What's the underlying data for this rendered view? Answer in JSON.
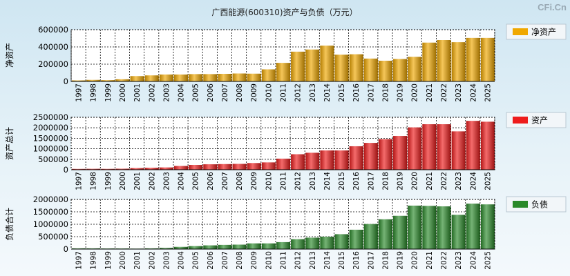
{
  "watermark": "CFi.Cn",
  "chart_data": [
    {
      "type": "bar",
      "title": "广西能源(600310)资产与负债（万元）",
      "ylabel": "净资产",
      "series": [
        {
          "name": "净资产",
          "color": "#f0a800",
          "values": [
            12000,
            18000,
            15000,
            25000,
            62000,
            70000,
            80000,
            80000,
            85000,
            85000,
            88000,
            92000,
            90000,
            140000,
            215000,
            345000,
            370000,
            415000,
            310000,
            315000,
            265000,
            240000,
            260000,
            285000,
            450000,
            480000,
            455000,
            505000,
            505000
          ]
        }
      ],
      "categories": [
        "1997",
        "1998",
        "1999",
        "2000",
        "2001",
        "2002",
        "2003",
        "2004",
        "2005",
        "2006",
        "2007",
        "2008",
        "2009",
        "2010",
        "2011",
        "2012",
        "2013",
        "2014",
        "2015",
        "2016",
        "2017",
        "2018",
        "2019",
        "2020",
        "2021",
        "2022",
        "2023",
        "2024",
        "2025"
      ],
      "ylim": [
        0,
        600000
      ],
      "yticks": [
        "0",
        "200000",
        "400000",
        "600000"
      ],
      "legend": "净资产"
    },
    {
      "type": "bar",
      "ylabel": "资产总计",
      "series": [
        {
          "name": "资产",
          "color": "#ee1c1c",
          "values": [
            40000,
            45000,
            42000,
            50000,
            80000,
            95000,
            110000,
            180000,
            230000,
            260000,
            270000,
            280000,
            320000,
            350000,
            530000,
            740000,
            810000,
            920000,
            920000,
            1120000,
            1280000,
            1460000,
            1610000,
            2020000,
            2170000,
            2170000,
            1830000,
            2330000,
            2290000
          ]
        }
      ],
      "categories": [
        "1997",
        "1998",
        "1999",
        "2000",
        "2001",
        "2002",
        "2003",
        "2004",
        "2005",
        "2006",
        "2007",
        "2008",
        "2009",
        "2010",
        "2011",
        "2012",
        "2013",
        "2014",
        "2015",
        "2016",
        "2017",
        "2018",
        "2019",
        "2020",
        "2021",
        "2022",
        "2023",
        "2024",
        "2025"
      ],
      "ylim": [
        0,
        2500000
      ],
      "yticks": [
        "0",
        "500000",
        "1000000",
        "1500000",
        "2000000",
        "2500000"
      ],
      "legend": "资产"
    },
    {
      "type": "bar",
      "ylabel": "负债合计",
      "series": [
        {
          "name": "负债",
          "color": "#2a8a2a",
          "values": [
            30000,
            30000,
            25000,
            25000,
            20000,
            30000,
            50000,
            90000,
            120000,
            150000,
            170000,
            180000,
            230000,
            230000,
            280000,
            400000,
            460000,
            500000,
            600000,
            780000,
            1010000,
            1200000,
            1340000,
            1750000,
            1740000,
            1720000,
            1380000,
            1830000,
            1800000
          ]
        }
      ],
      "categories": [
        "1997",
        "1998",
        "1999",
        "2000",
        "2001",
        "2002",
        "2003",
        "2004",
        "2005",
        "2006",
        "2007",
        "2008",
        "2009",
        "2010",
        "2011",
        "2012",
        "2013",
        "2014",
        "2015",
        "2016",
        "2017",
        "2018",
        "2019",
        "2020",
        "2021",
        "2022",
        "2023",
        "2024",
        "2025"
      ],
      "ylim": [
        0,
        2000000
      ],
      "yticks": [
        "0",
        "500000",
        "1000000",
        "1500000",
        "2000000"
      ],
      "legend": "负债"
    }
  ]
}
